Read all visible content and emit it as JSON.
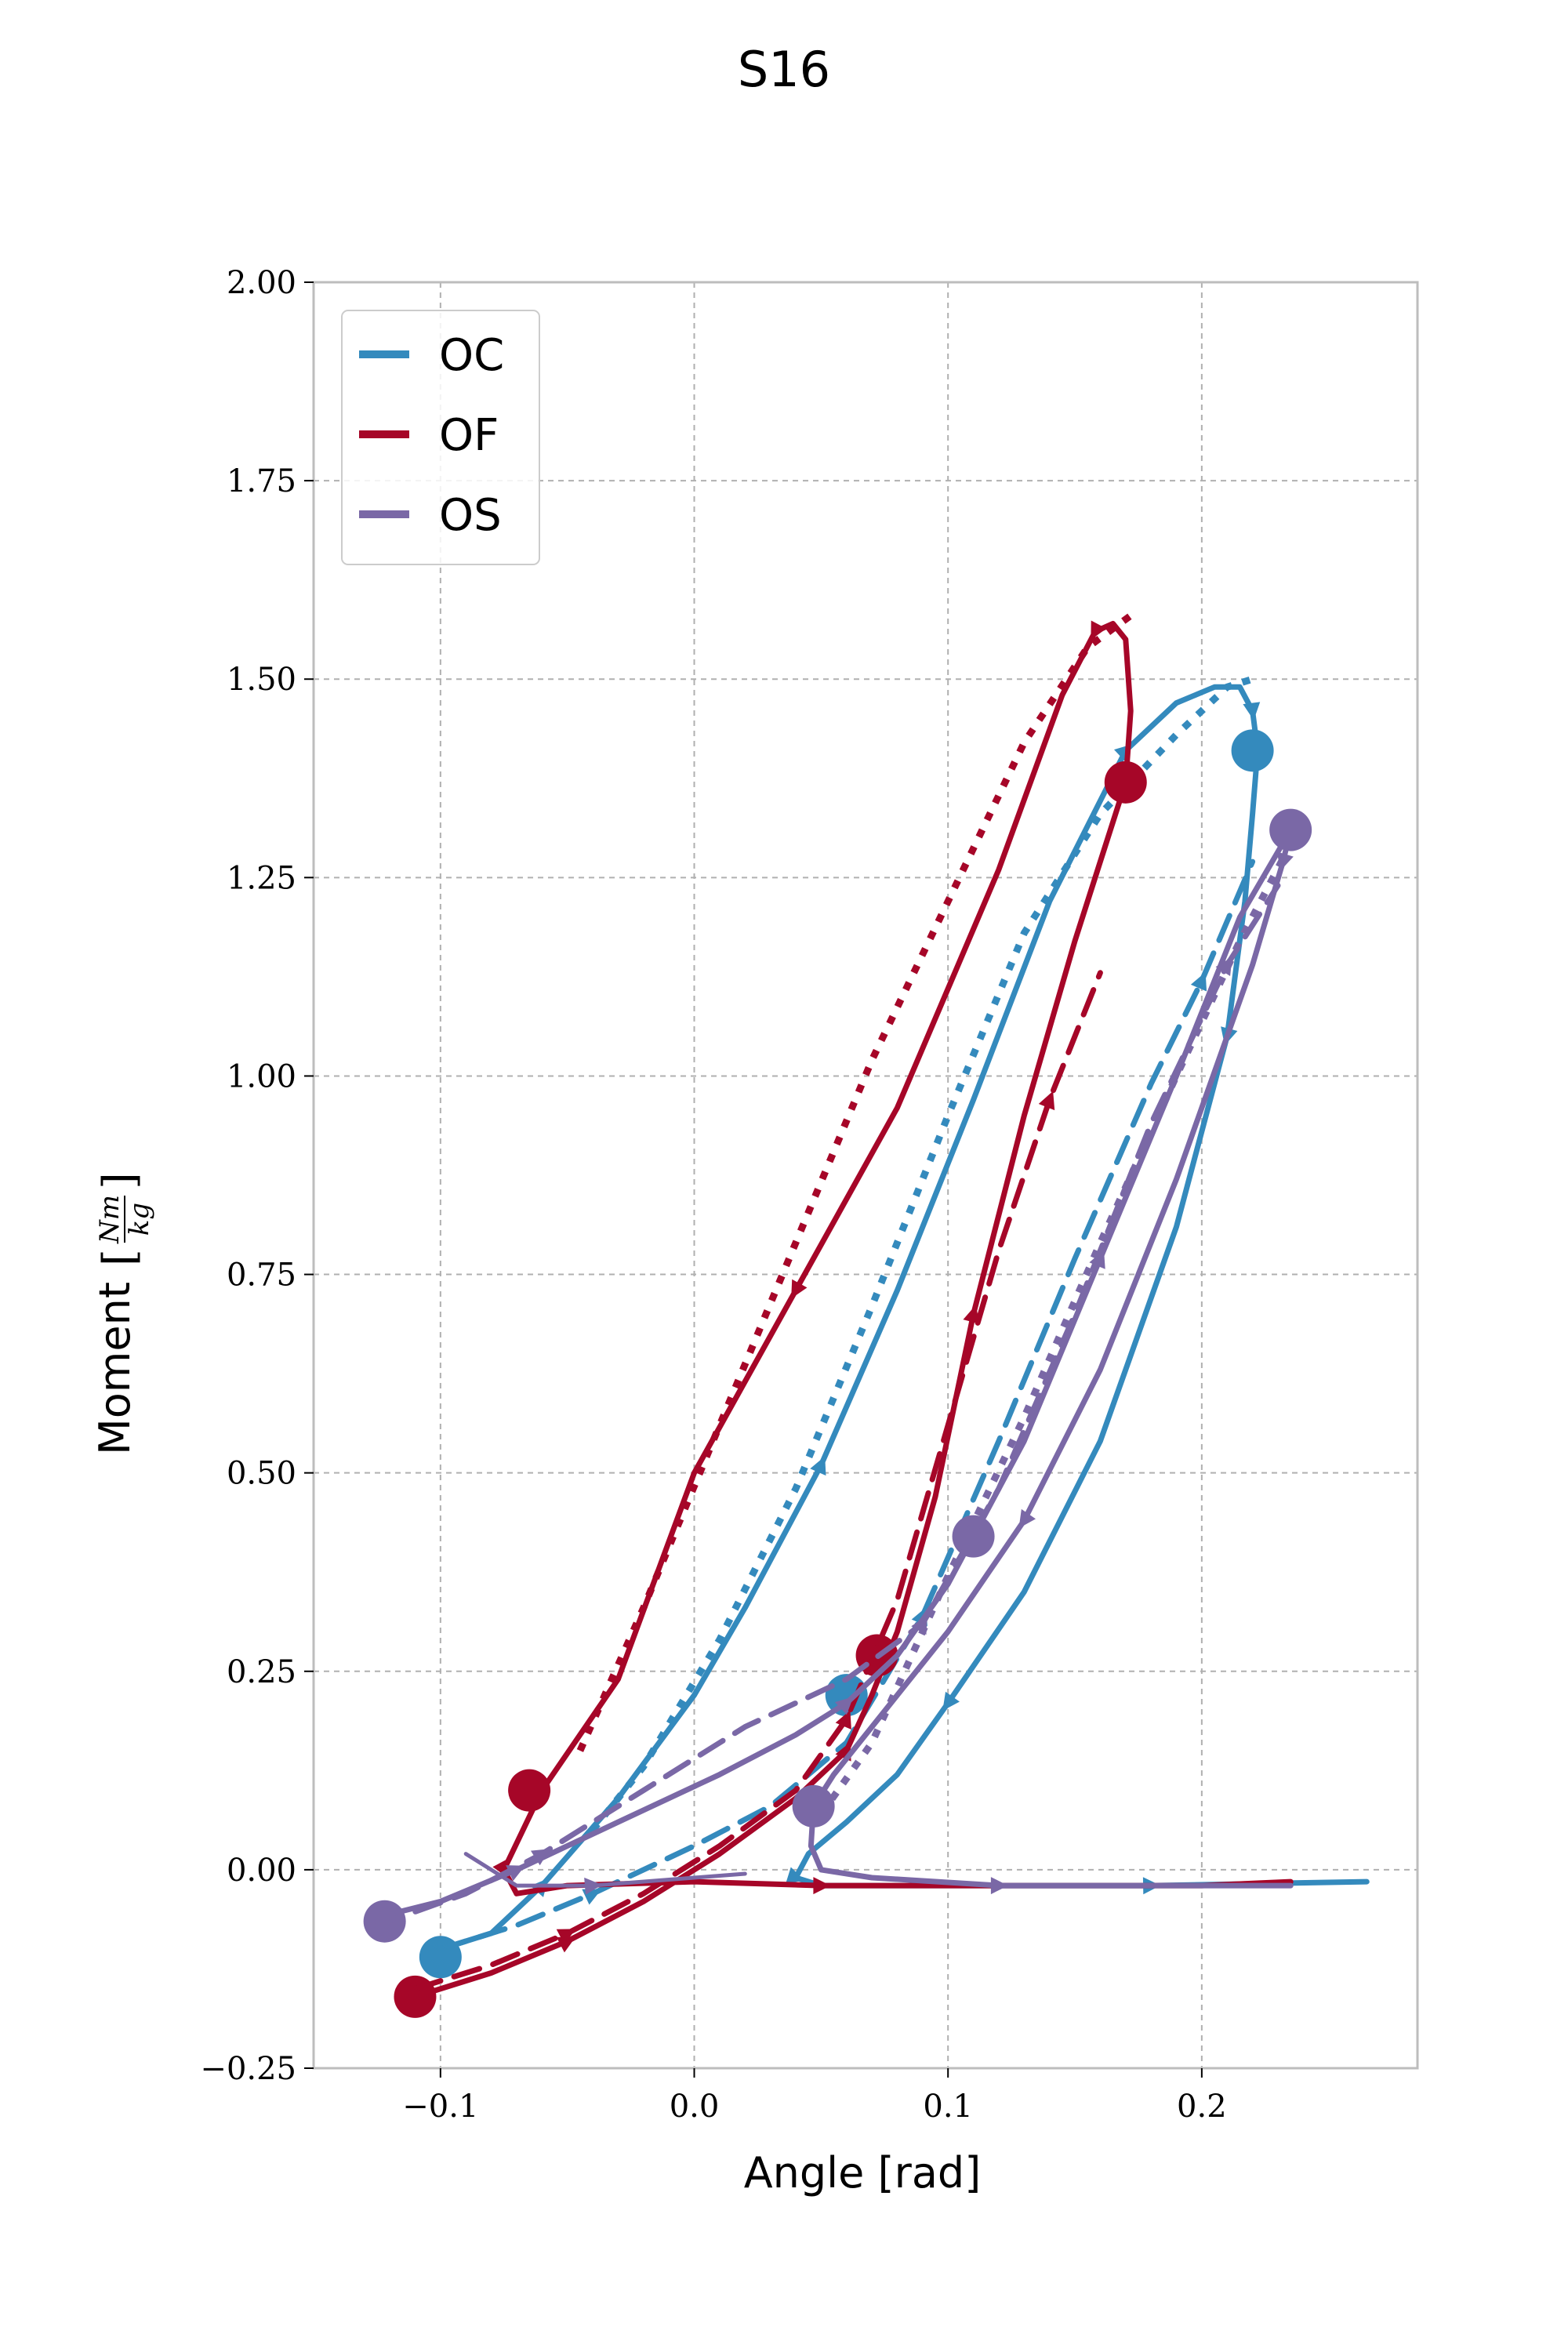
{
  "chart_data": {
    "type": "line",
    "title": "S16",
    "xlabel": "Angle [rad]",
    "ylabel": "Moment [Nm/kg]",
    "ylabel_prefix": "Moment",
    "ylabel_num": "Nm",
    "ylabel_den": "kg",
    "xlim": [
      -0.15,
      0.285
    ],
    "ylim": [
      -0.25,
      2.0
    ],
    "xticks": [
      -0.1,
      0.0,
      0.1,
      0.2
    ],
    "xtick_labels": [
      "−0.1",
      "0.0",
      "0.1",
      "0.2"
    ],
    "yticks": [
      -0.25,
      0.0,
      0.25,
      0.5,
      0.75,
      1.0,
      1.25,
      1.5,
      1.75,
      2.0
    ],
    "ytick_labels": [
      "−0.25",
      "0.00",
      "0.25",
      "0.50",
      "0.75",
      "1.00",
      "1.25",
      "1.50",
      "1.75",
      "2.00"
    ],
    "grid": true,
    "legend_position": "top-left",
    "legend": [
      "OC",
      "OF",
      "OS"
    ],
    "colors": {
      "OC": "#348ABD",
      "OF": "#A60628",
      "OS": "#7A68A6"
    },
    "series": [
      {
        "name": "OC",
        "style": "solid",
        "x": [
          -0.1,
          -0.08,
          -0.06,
          -0.03,
          0.0,
          0.02,
          0.05,
          0.08,
          0.11,
          0.14,
          0.17,
          0.19,
          0.205,
          0.215,
          0.22,
          0.222,
          0.22,
          0.217,
          0.21,
          0.19,
          0.16,
          0.13,
          0.1,
          0.08,
          0.06,
          0.045,
          0.04,
          0.05,
          0.08,
          0.12,
          0.18,
          0.265
        ],
        "y": [
          -0.1,
          -0.08,
          -0.02,
          0.09,
          0.22,
          0.33,
          0.51,
          0.73,
          0.97,
          1.22,
          1.41,
          1.47,
          1.49,
          1.49,
          1.46,
          1.41,
          1.33,
          1.22,
          1.05,
          0.81,
          0.54,
          0.35,
          0.21,
          0.12,
          0.06,
          0.02,
          -0.01,
          -0.02,
          -0.02,
          -0.02,
          -0.02,
          -0.015
        ],
        "markers": [
          {
            "x": -0.1,
            "y": -0.11
          },
          {
            "x": 0.22,
            "y": 1.41
          },
          {
            "x": 0.06,
            "y": 0.22
          }
        ]
      },
      {
        "name": "OC",
        "style": "dashed",
        "x": [
          -0.1,
          -0.07,
          -0.04,
          0.0,
          0.03,
          0.06,
          0.09,
          0.12,
          0.15,
          0.18,
          0.2,
          0.22
        ],
        "y": [
          -0.1,
          -0.07,
          -0.03,
          0.03,
          0.08,
          0.16,
          0.32,
          0.54,
          0.77,
          0.99,
          1.12,
          1.27
        ],
        "markers": []
      },
      {
        "name": "OC",
        "style": "dotted",
        "x": [
          -0.04,
          -0.02,
          0.01,
          0.04,
          0.07,
          0.1,
          0.13,
          0.16,
          0.19,
          0.21,
          0.22
        ],
        "y": [
          0.05,
          0.13,
          0.29,
          0.48,
          0.71,
          0.95,
          1.18,
          1.33,
          1.43,
          1.49,
          1.5
        ],
        "markers": []
      },
      {
        "name": "OF",
        "style": "solid",
        "x": [
          -0.11,
          -0.08,
          -0.05,
          -0.02,
          0.01,
          0.04,
          0.06,
          0.07,
          0.08,
          0.095,
          0.11,
          0.13,
          0.15,
          0.163,
          0.17,
          0.172,
          0.17,
          0.165,
          0.158,
          0.145,
          0.12,
          0.08,
          0.04,
          0.0,
          -0.03,
          -0.06,
          -0.075,
          -0.07,
          -0.05,
          0.0,
          0.05,
          0.1,
          0.15,
          0.2,
          0.235
        ],
        "y": [
          -0.16,
          -0.13,
          -0.09,
          -0.04,
          0.02,
          0.09,
          0.15,
          0.22,
          0.3,
          0.47,
          0.7,
          0.95,
          1.17,
          1.3,
          1.37,
          1.46,
          1.55,
          1.57,
          1.56,
          1.48,
          1.26,
          0.96,
          0.73,
          0.5,
          0.24,
          0.1,
          0.0,
          -0.03,
          -0.02,
          -0.015,
          -0.02,
          -0.02,
          -0.02,
          -0.02,
          -0.015
        ],
        "markers": [
          {
            "x": -0.11,
            "y": -0.16
          },
          {
            "x": 0.17,
            "y": 1.37
          },
          {
            "x": 0.072,
            "y": 0.27
          },
          {
            "x": -0.065,
            "y": 0.1
          }
        ]
      },
      {
        "name": "OF",
        "style": "dashed",
        "x": [
          -0.11,
          -0.08,
          -0.05,
          -0.02,
          0.01,
          0.04,
          0.06,
          0.08,
          0.1,
          0.12,
          0.14,
          0.16
        ],
        "y": [
          -0.15,
          -0.12,
          -0.08,
          -0.03,
          0.03,
          0.1,
          0.19,
          0.34,
          0.56,
          0.78,
          0.97,
          1.13
        ],
        "markers": []
      },
      {
        "name": "OF",
        "style": "dotted",
        "x": [
          -0.045,
          -0.02,
          0.01,
          0.04,
          0.07,
          0.1,
          0.13,
          0.155,
          0.172
        ],
        "y": [
          0.15,
          0.33,
          0.56,
          0.79,
          1.02,
          1.22,
          1.42,
          1.54,
          1.58
        ],
        "markers": []
      },
      {
        "name": "OS",
        "style": "solid",
        "x": [
          -0.125,
          -0.1,
          -0.07,
          -0.03,
          0.01,
          0.04,
          0.06,
          0.08,
          0.1,
          0.13,
          0.16,
          0.19,
          0.215,
          0.235,
          0.232,
          0.22,
          0.19,
          0.16,
          0.13,
          0.1,
          0.075,
          0.055,
          0.047,
          0.046,
          0.05,
          0.07,
          0.12,
          0.17,
          0.22,
          0.235
        ],
        "y": [
          -0.06,
          -0.04,
          0.0,
          0.06,
          0.12,
          0.17,
          0.21,
          0.27,
          0.36,
          0.54,
          0.77,
          1.0,
          1.2,
          1.31,
          1.27,
          1.14,
          0.87,
          0.63,
          0.44,
          0.3,
          0.2,
          0.12,
          0.08,
          0.03,
          0.0,
          -0.01,
          -0.02,
          -0.02,
          -0.02,
          -0.02
        ],
        "markers": [
          {
            "x": -0.122,
            "y": -0.065
          },
          {
            "x": 0.235,
            "y": 1.31
          },
          {
            "x": 0.11,
            "y": 0.42
          },
          {
            "x": 0.047,
            "y": 0.08
          }
        ]
      },
      {
        "name": "OS",
        "style": "dashed",
        "x": [
          -0.125,
          -0.09,
          -0.06,
          -0.02,
          0.02,
          0.06,
          0.09,
          0.12,
          0.15,
          0.18,
          0.21,
          0.23
        ],
        "y": [
          -0.07,
          -0.03,
          0.02,
          0.1,
          0.18,
          0.24,
          0.31,
          0.48,
          0.7,
          0.94,
          1.14,
          1.24
        ],
        "markers": []
      },
      {
        "name": "OS",
        "style": "dotted",
        "x": [
          0.05,
          0.07,
          0.1,
          0.13,
          0.16,
          0.19,
          0.215,
          0.233
        ],
        "y": [
          0.07,
          0.16,
          0.37,
          0.57,
          0.79,
          1.0,
          1.17,
          1.28
        ],
        "markers": []
      },
      {
        "name": "OS",
        "style": "solid-thin",
        "x": [
          -0.09,
          -0.07,
          -0.04,
          0.0,
          0.02
        ],
        "y": [
          0.02,
          -0.02,
          -0.02,
          -0.01,
          -0.005
        ],
        "markers": []
      }
    ]
  }
}
